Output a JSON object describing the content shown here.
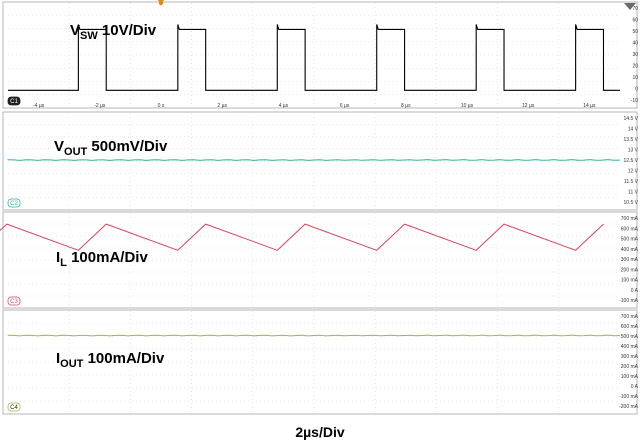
{
  "chart_data": [
    {
      "type": "line",
      "channel": "C1",
      "title": "V_SW 10V/Div",
      "title_main": "V",
      "title_sub": "SW",
      "title_rest": " 10V/Div",
      "color": "#000000",
      "x_unit": "µs",
      "xlim": [
        -5,
        15
      ],
      "x_ticks": [
        -4,
        -2,
        0,
        2,
        4,
        6,
        8,
        10,
        12,
        14
      ],
      "x_tick_labels": [
        "-4 µs",
        "-2 µs",
        "0 s",
        "2 µs",
        "4 µs",
        "6 µs",
        "8 µs",
        "10 µs",
        "12 µs",
        "14 µs"
      ],
      "y_unit": "V",
      "ylim": [
        -10,
        80
      ],
      "y_tick_labels": [
        "70",
        "60",
        "50",
        "40",
        "30",
        "20",
        "10",
        "0",
        "-10"
      ],
      "period_us": 3.25,
      "duty_cycle": 0.28,
      "high_V": 59,
      "low_V": -0.5,
      "first_rising_edge_us": -2.7
    },
    {
      "type": "line",
      "channel": "C2",
      "title": "V_OUT 500mV/Div",
      "title_main": "V",
      "title_sub": "OUT",
      "title_rest": " 500mV/Div",
      "color": "#2fb39a",
      "y_unit": "V",
      "ylim": [
        10.5,
        14.5
      ],
      "y_tick_labels": [
        "14.5 V",
        "14 V",
        "13.5 V",
        "13 V",
        "12.5 V",
        "12 V",
        "11.5 V",
        "11 V",
        "10.5 V"
      ],
      "level_V": 12.5
    },
    {
      "type": "line",
      "channel": "C3",
      "title": "I_L 100mA/Div",
      "title_main": "I",
      "title_sub": "L",
      "title_rest": " 100mA/Div",
      "color": "#d9465e",
      "y_unit": "mA",
      "ylim": [
        -100,
        700
      ],
      "y_tick_labels": [
        "700 mA",
        "600 mA",
        "500 mA",
        "400 mA",
        "300 mA",
        "200 mA",
        "100 mA",
        "0 A",
        "-100 mA"
      ],
      "valley_mA": 385,
      "peak_mA": 640
    },
    {
      "type": "line",
      "channel": "C4",
      "title": "I_OUT 100mA/Div",
      "title_main": "I",
      "title_sub": "OUT",
      "title_rest": " 100mA/Div",
      "color": "#a8b43c",
      "y_unit": "mA",
      "ylim": [
        -200,
        700
      ],
      "y_tick_labels": [
        "700 mA",
        "600 mA",
        "500 mA",
        "400 mA",
        "300 mA",
        "200 mA",
        "100 mA",
        "0 A",
        "-100 mA",
        "-200 mA"
      ],
      "level_mA": 505
    }
  ],
  "timebase": "2µs/Div"
}
